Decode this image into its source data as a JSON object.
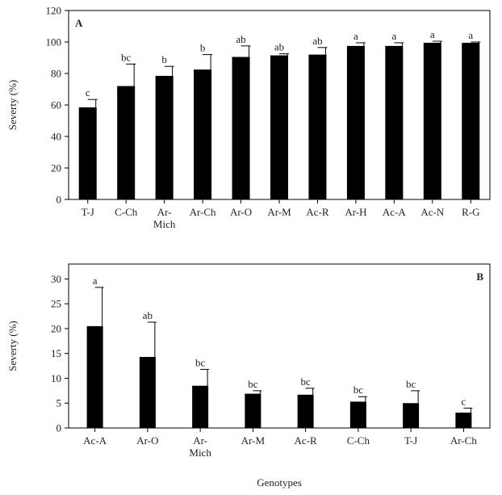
{
  "chart_data": [
    {
      "type": "bar",
      "panel_label": "A",
      "panel_label_position": "top-left",
      "ylabel": "Severty (%)",
      "categories": [
        "T-J",
        "C-Ch",
        "Ar-\nMich",
        "Ar-Ch",
        "Ar-O",
        "Ar-M",
        "Ac-R",
        "Ar-H",
        "Ac-A",
        "Ac-N",
        "R-G"
      ],
      "values": [
        58.5,
        72,
        78.5,
        82.5,
        90.5,
        91.5,
        92,
        97.5,
        97.5,
        99.5,
        99.5
      ],
      "errors": [
        5,
        14,
        6,
        9.5,
        7,
        1,
        4.5,
        2,
        2,
        1,
        0.5
      ],
      "letters": [
        "c",
        "bc",
        "b",
        "b",
        "ab",
        "ab",
        "ab",
        "a",
        "a",
        "a",
        "a"
      ],
      "color": "#000000",
      "ylim": [
        0,
        120
      ],
      "yticks": [
        0,
        20,
        40,
        60,
        80,
        100,
        120
      ]
    },
    {
      "type": "bar",
      "panel_label": "B",
      "panel_label_position": "top-right",
      "ylabel": "Severty (%)",
      "xlabel": "Genotypes",
      "categories": [
        "Ac-A",
        "Ar-O",
        "Ar-\nMich",
        "Ar-M",
        "Ac-R",
        "C-Ch",
        "T-J",
        "Ar-Ch"
      ],
      "values": [
        20.5,
        14.3,
        8.5,
        6.9,
        6.7,
        5.3,
        5.0,
        3.1
      ],
      "errors": [
        7.8,
        7.0,
        3.3,
        0.6,
        1.3,
        1.0,
        2.5,
        0.9
      ],
      "letters": [
        "a",
        "ab",
        "bc",
        "bc",
        "bc",
        "bc",
        "bc",
        "c"
      ],
      "color": "#000000",
      "ylim": [
        0,
        33
      ],
      "yticks": [
        0,
        5,
        10,
        15,
        20,
        25,
        30
      ]
    }
  ]
}
